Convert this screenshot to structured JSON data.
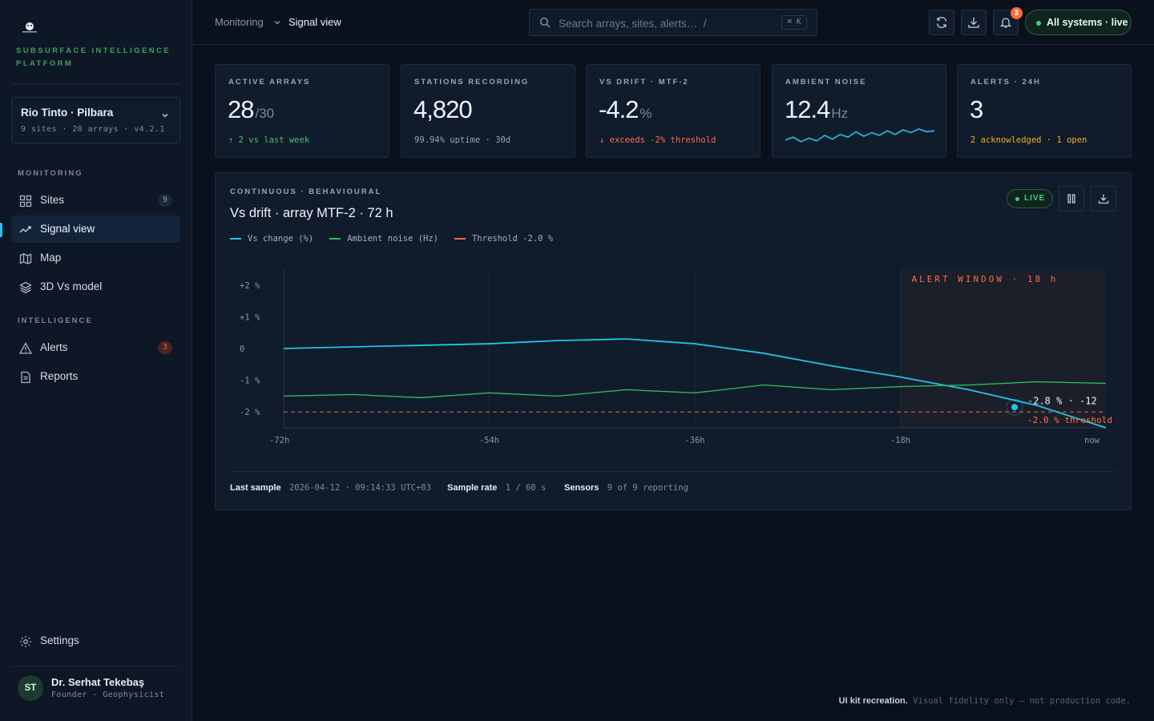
{
  "brand": {
    "tagline": "SUBSURFACE INTELLIGENCE PLATFORM"
  },
  "workspace": {
    "name": "Rio Tinto · Pilbara",
    "meta": "9 sites · 28 arrays · v4.2.1"
  },
  "sidebar": {
    "sections": [
      {
        "label": "MONITORING"
      },
      {
        "label": "INTELLIGENCE"
      }
    ],
    "items": [
      {
        "label": "Sites",
        "count": "9",
        "icon": "grid-icon"
      },
      {
        "label": "Signal view",
        "icon": "activity-icon",
        "active": true
      },
      {
        "label": "Map",
        "icon": "map-icon"
      },
      {
        "label": "3D Vs model",
        "icon": "layers-icon"
      },
      {
        "label": "Alerts",
        "count": "3",
        "icon": "warning-triangle-icon"
      },
      {
        "label": "Reports",
        "icon": "document-icon"
      }
    ],
    "settings_label": "Settings"
  },
  "user": {
    "initials": "ST",
    "name": "Dr. Serhat Tekebaş",
    "role": "Founder · Geophysicist"
  },
  "topbar": {
    "breadcrumb": [
      "Monitoring",
      "Signal view"
    ],
    "search_placeholder": "Search arrays, sites, alerts…  /",
    "search_shortcut": "⌘ K",
    "notifications_count": "3",
    "status_label": "All systems · live"
  },
  "kpis": [
    {
      "label": "ACTIVE ARRAYS",
      "value": "28",
      "unit": "/30",
      "sub": "↑ 2 vs last week",
      "sub_tone": "green"
    },
    {
      "label": "STATIONS RECORDING",
      "value": "4,820",
      "unit": "",
      "sub": "99.94% uptime · 30d",
      "sub_tone": "grey"
    },
    {
      "label": "VS DRIFT · MTF-2",
      "value": "-4.2",
      "unit": "%",
      "sub": "↓ exceeds -2% threshold",
      "sub_tone": "red"
    },
    {
      "label": "AMBIENT NOISE",
      "value": "12.4",
      "unit": "Hz",
      "sub": "",
      "sub_tone": "grey",
      "sparkline": [
        11.6,
        11.9,
        11.4,
        11.8,
        11.5,
        12.1,
        11.7,
        12.2,
        11.9,
        12.5,
        12.0,
        12.4,
        12.1,
        12.6,
        12.2,
        12.7,
        12.4,
        12.8,
        12.5,
        12.6
      ]
    },
    {
      "label": "ALERTS · 24H",
      "value": "3",
      "unit": "",
      "sub": "2 acknowledged · 1 open",
      "sub_tone": "amber"
    }
  ],
  "panel": {
    "eyebrow": "CONTINUOUS · BEHAVIOURAL",
    "title": "Vs drift · array MTF-2 · 72 h",
    "live_label": "LIVE",
    "footer": [
      {
        "label": "Last sample",
        "value": "2026-04-12 · 09:14:33 UTC+03"
      },
      {
        "label": "Sample rate",
        "value": "1 / 60 s"
      },
      {
        "label": "Sensors",
        "value": "9 of 9 reporting"
      }
    ]
  },
  "chart_data": {
    "type": "line",
    "x": [
      -72,
      -66,
      -60,
      -54,
      -48,
      -42,
      -36,
      -30,
      -24,
      -18,
      -12,
      -6,
      0
    ],
    "series": [
      {
        "name": "Vs change (%)",
        "color": "#22c3ee",
        "values": [
          0,
          0.05,
          0.1,
          0.15,
          0.25,
          0.3,
          0.15,
          -0.15,
          -0.55,
          -0.9,
          -1.3,
          -1.8,
          -2.5
        ]
      },
      {
        "name": "Ambient noise (Hz)",
        "color": "#2fb85f",
        "values": [
          -1.5,
          -1.45,
          -1.55,
          -1.4,
          -1.5,
          -1.3,
          -1.4,
          -1.15,
          -1.3,
          -1.2,
          -1.15,
          -1.05,
          -1.1
        ]
      }
    ],
    "threshold": {
      "name": "Threshold -2.0 %",
      "value": -2.0,
      "color": "#ff6b4a",
      "label": "-2.0 % threshold"
    },
    "alert_window": {
      "label": "ALERT WINDOW · 18 h",
      "from": -18,
      "to": 0
    },
    "marker": {
      "x": -8,
      "y": -1.85,
      "label": "-2.8 % · -12"
    },
    "y_ticks": [
      {
        "v": 2,
        "t": "+2 %"
      },
      {
        "v": 1,
        "t": "+1 %"
      },
      {
        "v": 0,
        "t": "0"
      },
      {
        "v": -1,
        "t": "-1 %"
      },
      {
        "v": -2,
        "t": "-2 %"
      }
    ],
    "x_ticks": [
      {
        "v": -72,
        "t": "-72h"
      },
      {
        "v": -54,
        "t": "-54h"
      },
      {
        "v": -36,
        "t": "-36h"
      },
      {
        "v": -18,
        "t": "-18h"
      },
      {
        "v": 0,
        "t": "now"
      }
    ],
    "xlim": [
      -72,
      0
    ],
    "ylim": [
      -2.5,
      2.5
    ],
    "grid": true,
    "legend_position": "top-left"
  },
  "footer_credit": {
    "bold": "UI kit recreation.",
    "text": "Visual fidelity only — not production code."
  }
}
